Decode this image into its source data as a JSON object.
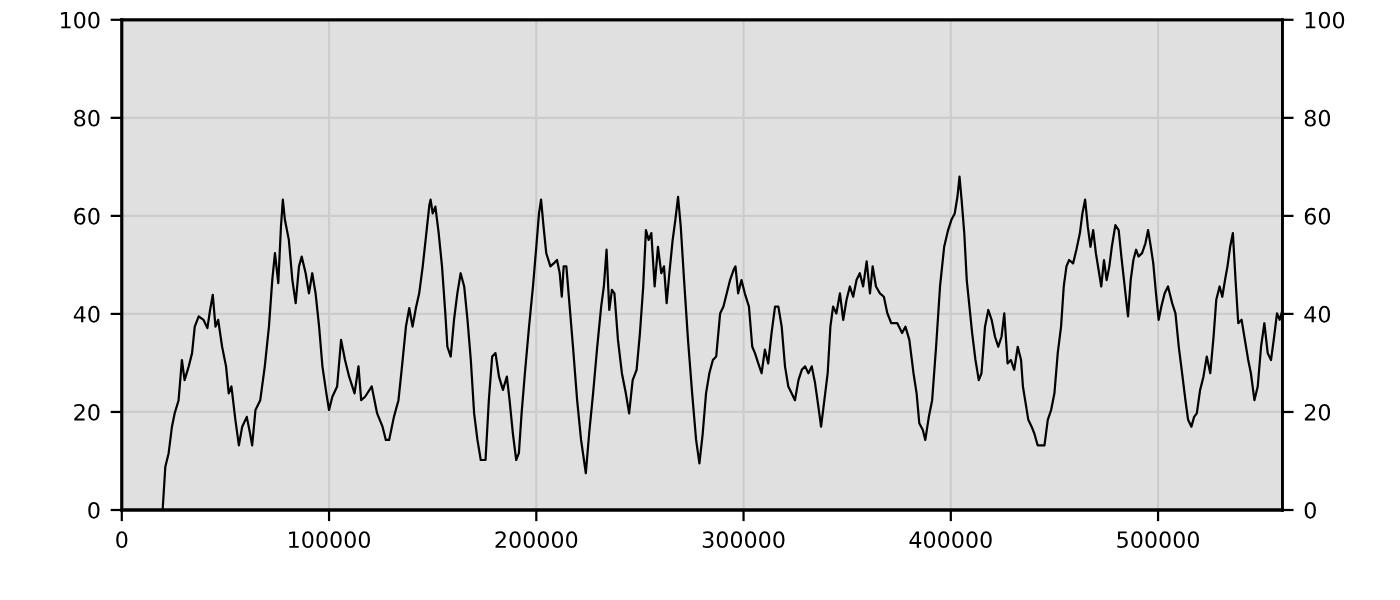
{
  "chart_data": {
    "type": "line",
    "x": [
      19700,
      21000,
      22600,
      24200,
      25500,
      27400,
      29000,
      30300,
      32300,
      33900,
      35200,
      37100,
      39400,
      41300,
      42600,
      43900,
      45200,
      46500,
      48400,
      50300,
      51600,
      52900,
      54800,
      56500,
      58100,
      60300,
      61900,
      62900,
      64500,
      66800,
      69000,
      71000,
      72600,
      73900,
      75500,
      76800,
      77700,
      78700,
      80600,
      82300,
      83900,
      85500,
      86800,
      88700,
      90300,
      91900,
      93500,
      95200,
      96800,
      98700,
      100000,
      101600,
      103900,
      105800,
      107700,
      109700,
      112300,
      114200,
      115500,
      117400,
      120600,
      123200,
      125800,
      127400,
      129000,
      131300,
      133500,
      135200,
      137100,
      138700,
      140300,
      141900,
      143500,
      145200,
      147100,
      148400,
      149000,
      150000,
      151300,
      152900,
      154500,
      156100,
      157100,
      158700,
      160300,
      161900,
      163500,
      165200,
      166800,
      168400,
      170000,
      171600,
      173200,
      175500,
      177100,
      178700,
      180300,
      182000,
      183900,
      185800,
      187100,
      188700,
      190300,
      191600,
      192900,
      194500,
      196500,
      198400,
      200000,
      201300,
      202300,
      203500,
      204800,
      206800,
      208400,
      210000,
      211300,
      212300,
      213200,
      214500,
      216100,
      217700,
      219700,
      221600,
      223900,
      225500,
      227400,
      229400,
      231300,
      232600,
      233900,
      235200,
      236500,
      237700,
      239400,
      241300,
      243200,
      244800,
      246500,
      248400,
      250000,
      251600,
      252900,
      254200,
      255500,
      257100,
      258700,
      260300,
      261600,
      262900,
      264200,
      265800,
      267100,
      268400,
      269700,
      271300,
      273200,
      275200,
      277100,
      278700,
      280300,
      281900,
      283500,
      285200,
      286800,
      288700,
      290300,
      291900,
      293500,
      295200,
      296100,
      297400,
      299000,
      300600,
      302600,
      304200,
      305500,
      307100,
      308700,
      310300,
      311900,
      313500,
      315200,
      316800,
      318400,
      320000,
      321600,
      323200,
      324800,
      326500,
      328100,
      329700,
      331300,
      332900,
      334500,
      336100,
      337400,
      339000,
      340600,
      341900,
      343200,
      344800,
      346500,
      348100,
      349700,
      351300,
      352900,
      354500,
      356100,
      357700,
      359400,
      361000,
      362300,
      363900,
      365800,
      367700,
      369400,
      371300,
      374200,
      376500,
      378100,
      380000,
      382000,
      383500,
      384800,
      386500,
      387700,
      389400,
      391000,
      392900,
      394800,
      396800,
      398700,
      400300,
      401900,
      403200,
      404200,
      405200,
      406500,
      407700,
      409000,
      410300,
      411900,
      413500,
      414800,
      416500,
      418100,
      419700,
      421300,
      422900,
      424500,
      425800,
      427400,
      429000,
      430600,
      432300,
      433900,
      434800,
      436100,
      437400,
      439000,
      440300,
      441900,
      445200,
      446800,
      448400,
      450000,
      451600,
      453200,
      454500,
      455800,
      457100,
      459000,
      460600,
      462300,
      463500,
      464800,
      466100,
      467400,
      468700,
      470000,
      471300,
      472600,
      473900,
      475200,
      476500,
      477700,
      479400,
      481000,
      482300,
      483900,
      485500,
      486800,
      488100,
      489400,
      490600,
      492300,
      493900,
      495200,
      496500,
      497700,
      499000,
      500300,
      501600,
      503200,
      504800,
      506800,
      508400,
      510000,
      511600,
      513200,
      514500,
      516100,
      517400,
      518700,
      520300,
      521900,
      523500,
      525200,
      526800,
      528100,
      529700,
      531000,
      532300,
      533500,
      534800,
      536100,
      537400,
      538700,
      540300,
      541900,
      543500,
      544800,
      546500,
      548100,
      549700,
      551300,
      552900,
      554500,
      555800,
      557400,
      558700,
      560000
    ],
    "series": [
      {
        "color": "#000000",
        "values": [
          0,
          8.8,
          11.6,
          17,
          19.7,
          22.4,
          30.6,
          26.5,
          29.3,
          32,
          37.4,
          39.5,
          38.8,
          37.1,
          40.8,
          43.9,
          37.4,
          38.8,
          33.3,
          29.3,
          23.8,
          25.2,
          18.4,
          13.2,
          17,
          19,
          15.6,
          13.2,
          20.4,
          22.4,
          29.3,
          37.4,
          46.9,
          52.4,
          46.3,
          57.8,
          63.3,
          59.2,
          55.1,
          46.9,
          42.2,
          49.7,
          51.7,
          48.3,
          44.2,
          48.3,
          44.2,
          37.4,
          29.3,
          23.8,
          20.4,
          23.1,
          25.2,
          34.7,
          30.6,
          27.2,
          23.8,
          29.3,
          22.4,
          23.1,
          25.2,
          19.7,
          17,
          14.3,
          14.3,
          19,
          22.4,
          29.3,
          37.4,
          41.2,
          37.4,
          41.2,
          44.2,
          49.7,
          57.1,
          62.2,
          63.3,
          60.5,
          61.9,
          56.5,
          49.7,
          40.1,
          33.3,
          31.3,
          38.8,
          44.2,
          48.3,
          45.6,
          38.8,
          30.6,
          19.7,
          14.3,
          10.2,
          10.2,
          22.4,
          31.3,
          32,
          27.2,
          24.5,
          27.2,
          22.4,
          15.6,
          10.2,
          11.6,
          19.7,
          27.9,
          37.4,
          45.6,
          53.7,
          60.5,
          63.3,
          57.8,
          52.4,
          49.7,
          50.3,
          51,
          48.3,
          43.5,
          49.7,
          49.7,
          41.5,
          33.3,
          22.4,
          14.3,
          7.5,
          15.6,
          23.8,
          33.3,
          41.5,
          45.6,
          53.1,
          40.8,
          44.9,
          44.2,
          34.7,
          27.9,
          23.8,
          19.7,
          26.5,
          28.6,
          36.1,
          45.6,
          57.1,
          55.1,
          56.5,
          45.6,
          53.7,
          48.3,
          49.7,
          42.2,
          48.3,
          55.1,
          59.2,
          63.9,
          57.8,
          46.9,
          34.7,
          23.8,
          14.3,
          9.5,
          15.6,
          23.8,
          27.9,
          30.6,
          31.3,
          40.1,
          41.5,
          44.2,
          46.9,
          49,
          49.7,
          44.2,
          46.9,
          44.2,
          41.5,
          33.3,
          32,
          29.9,
          27.9,
          32.7,
          29.9,
          36.1,
          41.5,
          41.5,
          37.4,
          29.3,
          25.2,
          23.8,
          22.4,
          26.5,
          28.6,
          29.3,
          27.9,
          29.3,
          25.9,
          21.1,
          17,
          22.4,
          27.9,
          37.4,
          41.5,
          40.1,
          44.2,
          38.8,
          42.9,
          45.6,
          43.5,
          46.9,
          48.3,
          45.6,
          50.7,
          44.2,
          49.7,
          45.6,
          44.2,
          43.5,
          40.1,
          38.1,
          38.1,
          36.1,
          37.4,
          34.7,
          27.9,
          23.8,
          17.7,
          16.3,
          14.3,
          19,
          22.4,
          33.3,
          45.6,
          53.7,
          57.1,
          59.2,
          60.5,
          63.9,
          68,
          63.3,
          56.5,
          46.9,
          41.5,
          36.1,
          30.6,
          26.5,
          27.9,
          37.4,
          40.8,
          38.8,
          35.4,
          33.3,
          35.4,
          40.1,
          29.9,
          30.6,
          28.6,
          33.3,
          30.6,
          25.2,
          21.8,
          18.4,
          17,
          15.6,
          13.2,
          13.2,
          18.4,
          20.4,
          23.8,
          32,
          37.4,
          45.6,
          49.7,
          51,
          50.3,
          53.1,
          56.5,
          60.5,
          63.3,
          57.8,
          53.7,
          57.1,
          52.4,
          49,
          45.6,
          51,
          46.9,
          49.7,
          53.7,
          58.1,
          57.1,
          51.7,
          45.6,
          39.5,
          46.9,
          51,
          53.1,
          51.7,
          52.4,
          54.4,
          57.1,
          53.7,
          50.3,
          44.2,
          38.8,
          41.5,
          44.2,
          45.6,
          42.2,
          40.1,
          33.3,
          27.9,
          22.4,
          18.4,
          17,
          19,
          19.7,
          24.5,
          27.2,
          31.3,
          27.9,
          35.4,
          42.9,
          45.6,
          43.5,
          46.9,
          49.7,
          53.7,
          56.5,
          46.9,
          38.1,
          38.8,
          34.7,
          30.6,
          27.9,
          22.4,
          25.2,
          33.3,
          38.1,
          32,
          30.6,
          34.7,
          40.1,
          38.8,
          40.8
        ]
      }
    ],
    "xlim": [
      0,
      560000
    ],
    "xticks": [
      0,
      100000,
      200000,
      300000,
      400000,
      500000
    ],
    "ylim": [
      0,
      100
    ],
    "yticks": [
      0,
      20,
      40,
      60,
      80,
      100
    ],
    "y2lim": [
      0,
      100
    ],
    "y2ticks": [
      0,
      20,
      40,
      60,
      80,
      100
    ],
    "grid": true
  }
}
